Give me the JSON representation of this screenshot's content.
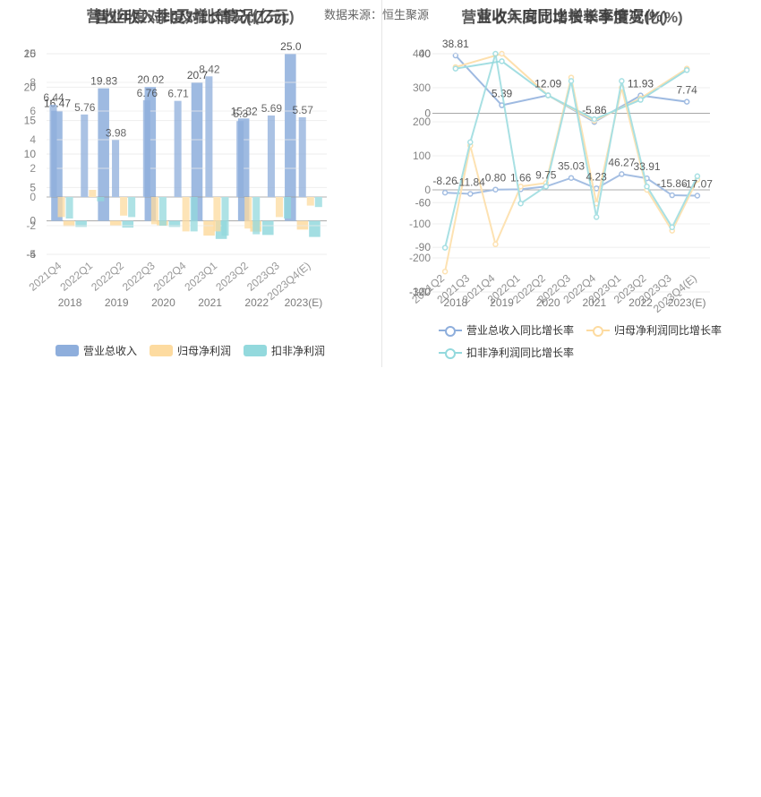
{
  "source_label": "数据来源：恒生聚源",
  "left": {
    "title_a": "营收年度对比及增长情况(亿元)",
    "title_b": "营业收入季度对比情况(亿元)",
    "legend": [
      {
        "label": "营业总收入",
        "color": "#8eaedc"
      },
      {
        "label": "归母净利润",
        "color": "#fddba0"
      },
      {
        "label": "扣非净利润",
        "color": "#93d9dd"
      }
    ],
    "axis_labels_stack": [
      "25",
      "20",
      "15",
      "10",
      "5",
      "0",
      "-5"
    ],
    "axis_labels_stack_b": [
      "10",
      "8",
      "6",
      "4",
      "2",
      "0",
      "-2",
      "-4"
    ]
  },
  "right": {
    "title_a": "营收年度同比增长率情况(%)",
    "title_b": "营业收入同比增长率季度变化(%)",
    "legend": [
      {
        "label": "营业总收入同比增长率",
        "color": "#8eaedc"
      },
      {
        "label": "归母净利润同比增长率",
        "color": "#fddba0"
      },
      {
        "label": "扣非净利润同比增长率",
        "color": "#93d9dd"
      }
    ]
  },
  "chart_data": [
    {
      "type": "bar",
      "title": "营收年度对比及增长情况(亿元)",
      "categories": [
        "2018",
        "2019",
        "2020",
        "2021",
        "2022",
        "2023(E)"
      ],
      "ylim": [
        -5,
        25
      ],
      "yticks": [
        -5,
        0,
        5,
        10,
        15,
        20,
        25
      ],
      "series": [
        {
          "name": "营业总收入",
          "values": [
            16.47,
            19.83,
            20.02,
            20.7,
            15.32,
            25.0
          ]
        },
        {
          "name": "归母净利润",
          "values": [
            -0.8,
            -0.7,
            -0.7,
            -2.2,
            -1.6,
            -1.3
          ]
        },
        {
          "name": "扣非净利润",
          "values": [
            -0.9,
            -1.0,
            -0.9,
            -2.7,
            -2.1,
            -2.4
          ]
        }
      ],
      "data_labels": [
        "16.47",
        "19.83",
        "20.02",
        "20.7",
        "15.32",
        "25.0"
      ]
    },
    {
      "type": "bar",
      "title": "营业收入季度对比情况(亿元)",
      "categories": [
        "2021Q4",
        "2022Q1",
        "2022Q2",
        "2022Q3",
        "2022Q4",
        "2023Q1",
        "2023Q2",
        "2023Q3",
        "2023Q4(E)"
      ],
      "ylim": [
        -4,
        10
      ],
      "yticks": [
        -4,
        -2,
        0,
        2,
        4,
        6,
        8,
        10
      ],
      "series": [
        {
          "name": "营业总收入",
          "values": [
            6.44,
            5.76,
            3.98,
            6.76,
            6.71,
            8.42,
            5.3,
            5.69,
            5.57
          ]
        },
        {
          "name": "归母净利润",
          "values": [
            -1.4,
            0.5,
            -1.3,
            -1.9,
            -2.4,
            -2.4,
            -2.2,
            -1.4,
            -0.6
          ]
        },
        {
          "name": "扣非净利润",
          "values": [
            -1.5,
            -0.3,
            -1.4,
            -2.0,
            -2.4,
            -2.7,
            -2.6,
            -1.5,
            -0.7
          ]
        }
      ],
      "data_labels": [
        "6.44",
        "5.76",
        "3.98",
        "6.76",
        "6.71",
        "8.42",
        "5.3",
        "5.69",
        "5.57"
      ]
    },
    {
      "type": "line",
      "title": "营收年度同比增长率情况(%)",
      "categories": [
        "2018",
        "2019",
        "2020",
        "2021",
        "2022",
        "2023(E)"
      ],
      "ylim": [
        -120,
        40
      ],
      "yticks": [
        -120,
        -90,
        -60,
        0,
        40
      ],
      "series": [
        {
          "name": "营业总收入同比增长率",
          "values": [
            38.81,
            5.39,
            12.09,
            -5.86,
            11.93,
            7.74
          ]
        },
        {
          "name": "归母净利润同比增长率",
          "values": [
            31.0,
            40.0,
            12.0,
            -5.0,
            10.0,
            30.0
          ]
        },
        {
          "name": "扣非净利润同比增长率",
          "values": [
            30.0,
            35.0,
            12.0,
            -4.0,
            9.0,
            29.0
          ]
        }
      ],
      "data_labels": [
        "38.81",
        "5.39",
        "12.09",
        "-5.86",
        "11.93",
        "7.74"
      ]
    },
    {
      "type": "line",
      "title": "营业收入同比增长率季度变化(%)",
      "categories": [
        "2021Q2",
        "2021Q3",
        "2021Q4",
        "2022Q1",
        "2022Q2",
        "2022Q3",
        "2022Q4",
        "2023Q1",
        "2023Q2",
        "2023Q3",
        "2023Q4(E)"
      ],
      "ylim": [
        -300,
        400
      ],
      "yticks": [
        -300,
        -200,
        -100,
        0,
        100,
        200,
        300,
        400
      ],
      "series": [
        {
          "name": "营业总收入同比增长率",
          "values": [
            -8.26,
            -11.84,
            0.8,
            1.66,
            9.75,
            35.03,
            4.23,
            46.27,
            33.91,
            -15.86,
            -17.07
          ]
        },
        {
          "name": "归母净利润同比增长率",
          "values": [
            -240,
            130,
            -160,
            10,
            20,
            330,
            -40,
            300,
            0,
            -120,
            30
          ]
        },
        {
          "name": "扣非净利润同比增长率",
          "values": [
            -170,
            140,
            400,
            -40,
            10,
            320,
            -80,
            320,
            10,
            -110,
            40
          ]
        }
      ],
      "data_labels": [
        "-8.26",
        "-11.84",
        "0.80",
        "1.66",
        "9.75",
        "35.03",
        "4.23",
        "46.27",
        "33.91",
        "-15.86",
        "-17.07"
      ]
    }
  ]
}
